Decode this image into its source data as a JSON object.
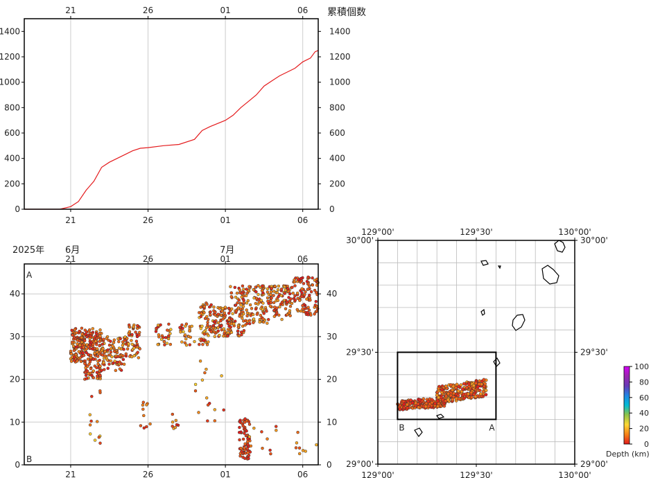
{
  "chart_data": [
    {
      "type": "line",
      "ylabel": "累積個数",
      "x_ticks": [
        "21",
        "26",
        "01",
        "06"
      ],
      "x_tick_days": [
        21,
        26,
        31,
        36
      ],
      "xlim": [
        18,
        37
      ],
      "ylim": [
        0,
        1500
      ],
      "y_ticks": [
        "0",
        "200",
        "400",
        "600",
        "800",
        "1000",
        "1200",
        "1400"
      ],
      "y_tick_values": [
        0,
        200,
        400,
        600,
        800,
        1000,
        1200,
        1400
      ],
      "line_color": "#e41a1c",
      "series": [
        {
          "x": [
            18,
            20.3,
            21.0,
            21.5,
            22.0,
            22.5,
            23.0,
            23.5,
            24.0,
            24.5,
            25.0,
            25.5,
            26.0,
            27.0,
            28.0,
            29.0,
            29.5,
            30.0,
            31.0,
            31.5,
            32.0,
            32.5,
            33.0,
            33.5,
            34.0,
            34.5,
            35.0,
            35.5,
            36.0,
            36.5,
            36.8,
            37.0
          ],
          "y": [
            0,
            0,
            20,
            60,
            150,
            220,
            330,
            370,
            400,
            430,
            460,
            480,
            485,
            500,
            510,
            550,
            620,
            650,
            700,
            740,
            800,
            850,
            900,
            970,
            1010,
            1050,
            1080,
            1110,
            1160,
            1190,
            1240,
            1250
          ]
        }
      ]
    },
    {
      "type": "scatter",
      "header_left": "2025年",
      "month_labels": [
        "6月",
        "7月"
      ],
      "month_label_days": [
        21,
        31
      ],
      "corner_top": "A",
      "corner_bottom": "B",
      "x_ticks": [
        "21",
        "26",
        "01",
        "06"
      ],
      "x_tick_days": [
        21,
        26,
        31,
        36
      ],
      "xlim": [
        18,
        37
      ],
      "ylim": [
        0,
        47
      ],
      "y_ticks": [
        "0",
        "10",
        "20",
        "30",
        "40"
      ],
      "y_tick_values": [
        0,
        10,
        20,
        30,
        40
      ],
      "clusters": [
        {
          "x": [
            21.0,
            21.9
          ],
          "y": [
            24,
            32
          ],
          "n": 120,
          "depth_max": 15
        },
        {
          "x": [
            21.9,
            23.0
          ],
          "y": [
            20,
            32
          ],
          "n": 140,
          "depth_max": 15
        },
        {
          "x": [
            23.0,
            24.5
          ],
          "y": [
            22,
            30
          ],
          "n": 90,
          "depth_max": 20
        },
        {
          "x": [
            24.5,
            25.5
          ],
          "y": [
            25,
            33
          ],
          "n": 60,
          "depth_max": 20
        },
        {
          "x": [
            26.5,
            27.5
          ],
          "y": [
            28,
            33
          ],
          "n": 30,
          "depth_max": 22
        },
        {
          "x": [
            28.0,
            29.0
          ],
          "y": [
            28,
            33
          ],
          "n": 25,
          "depth_max": 25
        },
        {
          "x": [
            29.3,
            30.2
          ],
          "y": [
            28,
            38
          ],
          "n": 60,
          "depth_max": 25
        },
        {
          "x": [
            30.2,
            31.3
          ],
          "y": [
            30,
            37
          ],
          "n": 80,
          "depth_max": 20
        },
        {
          "x": [
            31.3,
            32.3
          ],
          "y": [
            30,
            42
          ],
          "n": 80,
          "depth_max": 20
        },
        {
          "x": [
            32.3,
            33.8
          ],
          "y": [
            33,
            42
          ],
          "n": 90,
          "depth_max": 20
        },
        {
          "x": [
            33.8,
            35.2
          ],
          "y": [
            34,
            42
          ],
          "n": 90,
          "depth_max": 20
        },
        {
          "x": [
            35.2,
            37.0
          ],
          "y": [
            35,
            44
          ],
          "n": 100,
          "depth_max": 15
        },
        {
          "x": [
            31.9,
            32.6
          ],
          "y": [
            1,
            11
          ],
          "n": 70,
          "depth_max": 10
        },
        {
          "x": [
            25.5,
            26.2
          ],
          "y": [
            8,
            15
          ],
          "n": 10,
          "depth_max": 15
        },
        {
          "x": [
            27.5,
            28.0
          ],
          "y": [
            8,
            12
          ],
          "n": 8,
          "depth_max": 20
        },
        {
          "x": [
            22.0,
            23.5
          ],
          "y": [
            5,
            19
          ],
          "n": 12,
          "depth_max": 25
        },
        {
          "x": [
            29.0,
            31.0
          ],
          "y": [
            5,
            25
          ],
          "n": 15,
          "depth_max": 25
        },
        {
          "x": [
            32.5,
            34.5
          ],
          "y": [
            2,
            9
          ],
          "n": 10,
          "depth_max": 20
        },
        {
          "x": [
            35.5,
            37.0
          ],
          "y": [
            1,
            8
          ],
          "n": 8,
          "depth_max": 20
        }
      ]
    },
    {
      "type": "map",
      "lon_labels": [
        "129°00'",
        "129°30'",
        "130°00'"
      ],
      "lon_values": [
        129.0,
        129.5,
        130.0
      ],
      "lat_labels": [
        "30°00'",
        "29°30'",
        "29°00'"
      ],
      "lat_values": [
        30.0,
        29.5,
        29.0
      ],
      "extent": {
        "lon": [
          129.0,
          130.0
        ],
        "lat": [
          29.0,
          30.0
        ]
      },
      "grid_step_deg": 0.1,
      "box_label_left": "B",
      "box_label_right": "A",
      "box": {
        "lon": [
          129.1,
          129.6
        ],
        "lat": [
          29.2,
          29.5
        ]
      },
      "epicenter_clusters": [
        {
          "lon": [
            129.1,
            129.35
          ],
          "lat": [
            29.24,
            29.3
          ],
          "n": 160,
          "depth_max": 12
        },
        {
          "lon": [
            129.3,
            129.55
          ],
          "lat": [
            29.27,
            29.38
          ],
          "n": 240,
          "depth_max": 18
        }
      ]
    },
    {
      "type": "colorbar",
      "label": "Depth (km)",
      "ticks": [
        "0",
        "20",
        "40",
        "60",
        "80",
        "100"
      ],
      "tick_values": [
        0,
        20,
        40,
        60,
        80,
        100
      ],
      "colors": [
        "#e31a1c",
        "#f57f17",
        "#fdd835",
        "#8bc34a",
        "#00bcd4",
        "#1e88e5",
        "#673ab7",
        "#9c27b0",
        "#d500f9"
      ]
    }
  ]
}
